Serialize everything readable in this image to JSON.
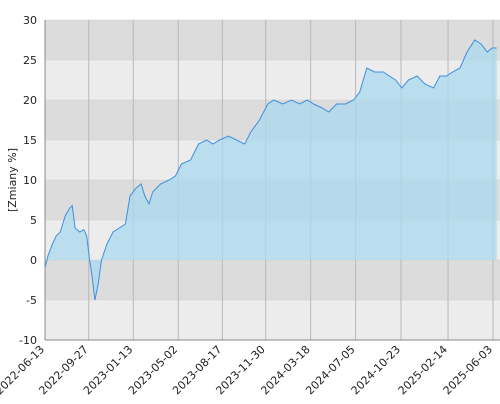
{
  "chart_data": {
    "type": "area",
    "y_label": "[Zmiany %]",
    "x": [
      "2022-06-13",
      "2022-06-20",
      "2022-07-01",
      "2022-07-10",
      "2022-07-20",
      "2022-08-01",
      "2022-08-12",
      "2022-08-18",
      "2022-08-25",
      "2022-09-05",
      "2022-09-15",
      "2022-09-22",
      "2022-09-29",
      "2022-10-05",
      "2022-10-12",
      "2022-10-20",
      "2022-10-28",
      "2022-11-10",
      "2022-11-25",
      "2022-12-10",
      "2022-12-25",
      "2023-01-05",
      "2023-01-20",
      "2023-02-01",
      "2023-02-10",
      "2023-02-20",
      "2023-03-01",
      "2023-03-20",
      "2023-04-10",
      "2023-04-25",
      "2023-05-10",
      "2023-06-01",
      "2023-06-20",
      "2023-07-10",
      "2023-07-25",
      "2023-08-10",
      "2023-09-01",
      "2023-09-20",
      "2023-10-10",
      "2023-10-25",
      "2023-11-15",
      "2023-12-05",
      "2023-12-20",
      "2024-01-10",
      "2024-02-01",
      "2024-02-20",
      "2024-03-10",
      "2024-03-25",
      "2024-04-15",
      "2024-05-01",
      "2024-05-20",
      "2024-06-10",
      "2024-06-30",
      "2024-07-15",
      "2024-08-01",
      "2024-08-20",
      "2024-09-10",
      "2024-09-25",
      "2024-10-10",
      "2024-10-25",
      "2024-11-10",
      "2024-12-01",
      "2024-12-20",
      "2025-01-10",
      "2025-01-25",
      "2025-02-10",
      "2025-02-25",
      "2025-03-15",
      "2025-04-01",
      "2025-04-20",
      "2025-05-05",
      "2025-05-20",
      "2025-06-01",
      "2025-06-12"
    ],
    "values": [
      -1,
      0.5,
      2,
      3,
      3.5,
      5.5,
      6.5,
      6.8,
      4,
      3.5,
      3.8,
      3,
      0,
      -2,
      -5,
      -3,
      0,
      2,
      3.5,
      4,
      4.5,
      8,
      9,
      9.5,
      8,
      7,
      8.5,
      9.5,
      10,
      10.5,
      12,
      12.5,
      14.5,
      15,
      14.5,
      15,
      15.5,
      15,
      14.5,
      16,
      17.5,
      19.5,
      20,
      19.5,
      20,
      19.5,
      20,
      19.5,
      19,
      18.5,
      19.5,
      19.5,
      20,
      21,
      24,
      23.5,
      23.5,
      23,
      22.5,
      21.5,
      22.5,
      23,
      22,
      21.5,
      23,
      23,
      23.5,
      24,
      26,
      27.5,
      27,
      26,
      26.5,
      26.5
    ],
    "color": "#3d8fe0",
    "fill": "#a9d9ee",
    "ylim": [
      -10,
      30
    ],
    "yticks": [
      -10,
      -5,
      0,
      5,
      10,
      15,
      20,
      25,
      30
    ],
    "xlim": [
      "2022-06-13",
      "2025-06-20"
    ],
    "xticks": [
      "2022-06-13",
      "2022-09-27",
      "2023-01-13",
      "2023-05-02",
      "2023-08-17",
      "2023-11-30",
      "2024-03-18",
      "2024-07-05",
      "2024-10-23",
      "2025-02-14",
      "2025-06-03"
    ],
    "grid": true
  }
}
